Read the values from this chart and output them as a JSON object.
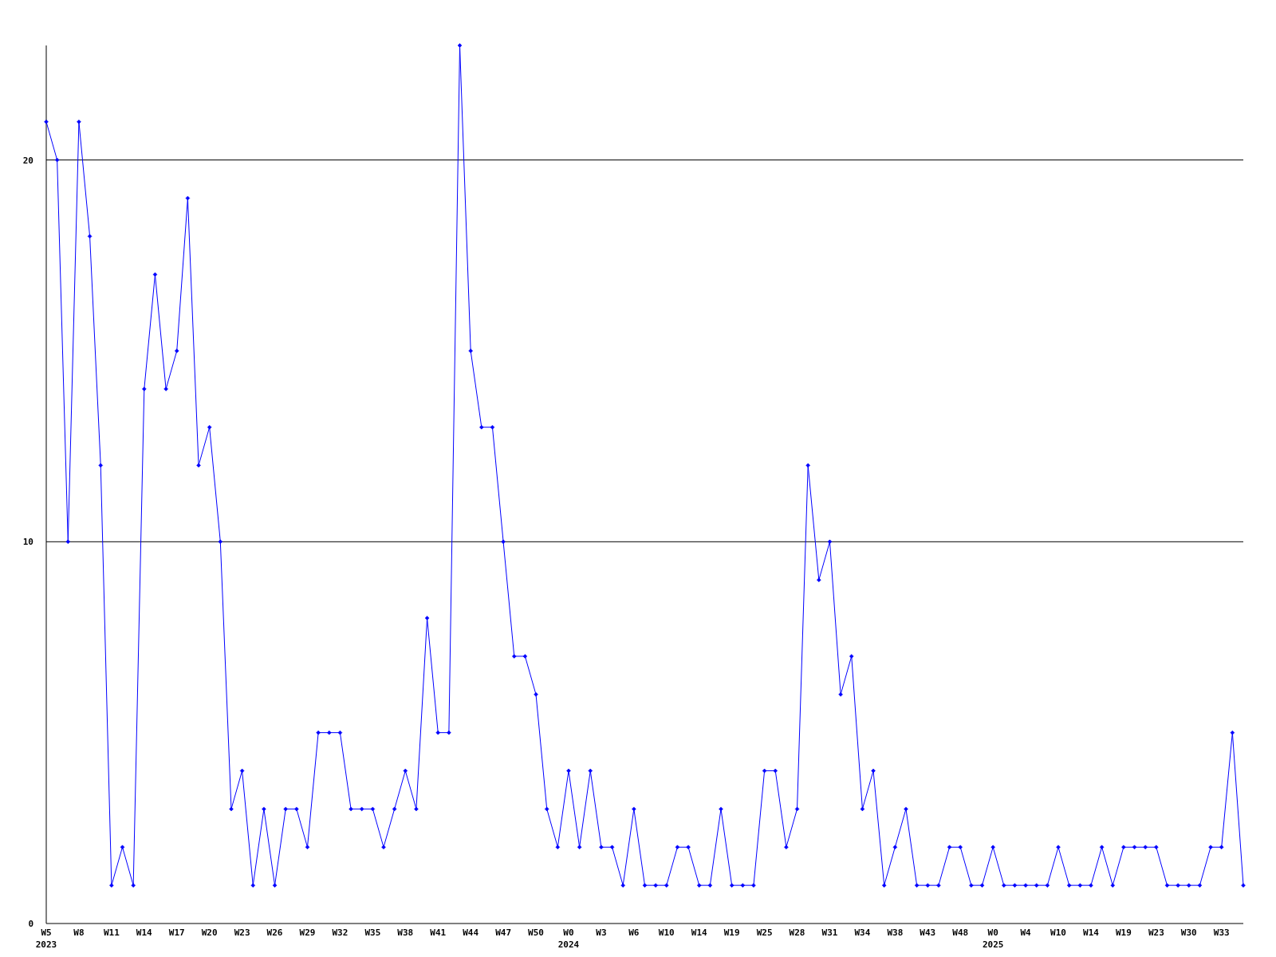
{
  "chart_data": {
    "type": "line",
    "categories": [
      "W5\n2023",
      null,
      null,
      "W8",
      null,
      null,
      "W11",
      null,
      null,
      "W14",
      null,
      null,
      "W17",
      null,
      null,
      "W20",
      null,
      null,
      "W23",
      null,
      null,
      "W26",
      null,
      null,
      "W29",
      null,
      null,
      "W32",
      null,
      null,
      "W35",
      null,
      null,
      "W38",
      null,
      null,
      "W41",
      null,
      null,
      "W44",
      null,
      null,
      "W47",
      null,
      null,
      "W50",
      null,
      null,
      "W0\n2024",
      null,
      null,
      "W3",
      null,
      null,
      "W6",
      null,
      null,
      "W10",
      null,
      null,
      "W14",
      null,
      null,
      "W19",
      null,
      null,
      "W25",
      null,
      null,
      "W28",
      null,
      null,
      "W31",
      null,
      null,
      "W34",
      null,
      null,
      "W38",
      null,
      null,
      "W43",
      null,
      null,
      "W48",
      null,
      null,
      "W0\n2025",
      null,
      null,
      "W4",
      null,
      null,
      "W10",
      null,
      null,
      "W14",
      null,
      null,
      "W19",
      null,
      null,
      "W23",
      null,
      null,
      "W30",
      null,
      null,
      "W33",
      null,
      null
    ],
    "series": [
      {
        "color": "#0000ff",
        "values": [
          21,
          20,
          10,
          21,
          18,
          12,
          1,
          2,
          1,
          14,
          17,
          14,
          15,
          19,
          12,
          13,
          10,
          3,
          4,
          1,
          3,
          1,
          3,
          3,
          2,
          5,
          5,
          5,
          3,
          3,
          3,
          2,
          3,
          4,
          3,
          8,
          5,
          5,
          23,
          15,
          13,
          13,
          10,
          7,
          7,
          6,
          3,
          2,
          4,
          2,
          4,
          2,
          2,
          1,
          3,
          1,
          1,
          1,
          2,
          2,
          1,
          1,
          3,
          1,
          1,
          1,
          4,
          4,
          2,
          3,
          12,
          9,
          10,
          6,
          7,
          3,
          4,
          1,
          2,
          3,
          1,
          1,
          1,
          2,
          2,
          1,
          1,
          2,
          1,
          1,
          1,
          1,
          1,
          2,
          1,
          1,
          1,
          2,
          1,
          2,
          2,
          2,
          2,
          1,
          1,
          1,
          1,
          2,
          2,
          5,
          1
        ]
      }
    ],
    "ylim": [
      0,
      23
    ],
    "yticks": [
      0,
      10,
      20
    ],
    "grid": "y",
    "marker": "diamond",
    "line_style": "solid"
  }
}
